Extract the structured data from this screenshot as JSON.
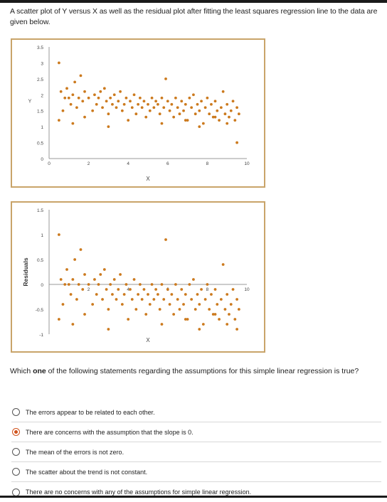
{
  "intro_text": "A scatter plot of Y versus X as well as the residual plot after fitting the least squares regression line to the data are given below.",
  "accent_color": "#c9a46a",
  "point_color": "#cc7a1e",
  "question": {
    "prefix": "Which ",
    "emphasis": "one",
    "suffix": " of the following statements regarding the assumptions for this simple linear regression is true?"
  },
  "options": [
    {
      "label": "The errors appear to be related to each other.",
      "selected": false
    },
    {
      "label": "There are concerns with the assumption that the slope is 0.",
      "selected": true
    },
    {
      "label": "The mean of the errors is not zero.",
      "selected": false
    },
    {
      "label": "The scatter about the trend is not constant.",
      "selected": false
    },
    {
      "label": "There are no concerns with any of the assumptions for simple linear regression.",
      "selected": false
    }
  ],
  "chart_data": [
    {
      "type": "scatter",
      "title": "",
      "xlabel": "X",
      "ylabel": "Y",
      "xlim": [
        0,
        10
      ],
      "ylim": [
        0,
        3.5
      ],
      "xticks": [
        "0",
        "2",
        "4",
        "6",
        "8",
        "10"
      ],
      "yticks": [
        "0",
        "0.5",
        "1",
        "1.5",
        "2",
        "2.5",
        "3",
        "3.5"
      ],
      "x": [
        0.5,
        0.6,
        0.7,
        0.8,
        0.9,
        1.0,
        1.1,
        1.2,
        1.3,
        1.4,
        1.5,
        1.6,
        1.7,
        1.8,
        2.0,
        2.2,
        2.3,
        2.4,
        2.5,
        2.6,
        2.7,
        2.8,
        2.9,
        3.0,
        3.1,
        3.2,
        3.3,
        3.4,
        3.5,
        3.6,
        3.7,
        3.8,
        3.9,
        4.0,
        4.1,
        4.2,
        4.3,
        4.4,
        4.5,
        4.6,
        4.7,
        4.8,
        4.9,
        5.0,
        5.1,
        5.2,
        5.3,
        5.4,
        5.5,
        5.6,
        5.7,
        5.8,
        5.9,
        6.0,
        6.1,
        6.2,
        6.3,
        6.4,
        6.5,
        6.6,
        6.7,
        6.8,
        6.9,
        7.0,
        7.1,
        7.2,
        7.3,
        7.4,
        7.5,
        7.6,
        7.7,
        7.8,
        7.9,
        8.0,
        8.1,
        8.2,
        8.3,
        8.4,
        8.5,
        8.6,
        8.7,
        8.8,
        8.9,
        9.0,
        9.1,
        9.2,
        9.3,
        9.4,
        9.5,
        9.6,
        0.5,
        1.2,
        1.8,
        3.0,
        5.7,
        6.9,
        7.6,
        8.4,
        9.0,
        9.5
      ],
      "y": [
        3.0,
        2.1,
        1.5,
        1.9,
        2.2,
        1.9,
        1.7,
        2.0,
        2.4,
        1.6,
        1.9,
        2.6,
        1.8,
        2.1,
        1.9,
        1.5,
        2.0,
        1.7,
        1.9,
        2.1,
        1.6,
        2.2,
        1.8,
        1.4,
        1.9,
        1.7,
        2.0,
        1.6,
        1.8,
        2.1,
        1.5,
        1.7,
        1.9,
        1.2,
        1.8,
        1.6,
        2.0,
        1.4,
        1.7,
        1.9,
        1.6,
        1.8,
        1.3,
        1.7,
        1.5,
        1.9,
        1.6,
        1.8,
        1.7,
        1.4,
        1.9,
        1.6,
        2.5,
        1.8,
        1.5,
        1.7,
        1.3,
        1.9,
        1.6,
        1.4,
        1.8,
        1.5,
        1.7,
        1.2,
        1.9,
        1.6,
        2.0,
        1.4,
        1.7,
        1.5,
        1.8,
        1.1,
        1.6,
        1.9,
        1.4,
        1.7,
        1.3,
        1.8,
        1.5,
        1.2,
        1.6,
        2.1,
        1.4,
        1.7,
        1.3,
        1.5,
        1.8,
        1.2,
        1.6,
        1.4,
        1.2,
        1.1,
        1.3,
        1.0,
        1.1,
        1.2,
        1.0,
        1.3,
        1.1,
        0.5
      ]
    },
    {
      "type": "scatter",
      "title": "",
      "xlabel": "X",
      "ylabel": "Residuals",
      "xlim": [
        0,
        10
      ],
      "ylim": [
        -1,
        1.5
      ],
      "xticks": [
        "2",
        "4",
        "6",
        "8",
        "10"
      ],
      "yticks": [
        "-1",
        "-0.5",
        "0",
        "0.5",
        "1",
        "1.5"
      ],
      "x": [
        0.5,
        0.6,
        0.7,
        0.8,
        0.9,
        1.0,
        1.1,
        1.2,
        1.3,
        1.4,
        1.5,
        1.6,
        1.7,
        1.8,
        2.0,
        2.2,
        2.3,
        2.4,
        2.5,
        2.6,
        2.7,
        2.8,
        2.9,
        3.0,
        3.1,
        3.2,
        3.3,
        3.4,
        3.5,
        3.6,
        3.7,
        3.8,
        3.9,
        4.0,
        4.1,
        4.2,
        4.3,
        4.4,
        4.5,
        4.6,
        4.7,
        4.8,
        4.9,
        5.0,
        5.1,
        5.2,
        5.3,
        5.4,
        5.5,
        5.6,
        5.7,
        5.8,
        5.9,
        6.0,
        6.1,
        6.2,
        6.3,
        6.4,
        6.5,
        6.6,
        6.7,
        6.8,
        6.9,
        7.0,
        7.1,
        7.2,
        7.3,
        7.4,
        7.5,
        7.6,
        7.7,
        7.8,
        7.9,
        8.0,
        8.1,
        8.2,
        8.3,
        8.4,
        8.5,
        8.6,
        8.7,
        8.8,
        8.9,
        9.0,
        9.1,
        9.2,
        9.3,
        9.4,
        9.5,
        9.6,
        0.5,
        1.2,
        1.8,
        3.0,
        5.7,
        6.9,
        7.6,
        8.4,
        9.0,
        9.5
      ],
      "y": [
        1.0,
        0.1,
        -0.4,
        0.0,
        0.3,
        0.0,
        -0.2,
        0.1,
        0.5,
        -0.3,
        0.0,
        0.7,
        -0.1,
        0.2,
        0.0,
        -0.4,
        0.1,
        -0.2,
        0.0,
        0.2,
        -0.3,
        0.3,
        -0.1,
        -0.5,
        0.0,
        -0.2,
        0.1,
        -0.3,
        -0.1,
        0.2,
        -0.4,
        -0.2,
        0.0,
        -0.7,
        -0.1,
        -0.3,
        0.1,
        -0.5,
        -0.2,
        0.0,
        -0.3,
        -0.1,
        -0.6,
        -0.2,
        -0.4,
        0.0,
        -0.3,
        -0.1,
        -0.2,
        -0.5,
        0.0,
        -0.3,
        0.9,
        -0.1,
        -0.4,
        -0.2,
        -0.6,
        0.0,
        -0.3,
        -0.5,
        -0.1,
        -0.4,
        -0.2,
        -0.7,
        0.0,
        -0.3,
        0.1,
        -0.5,
        -0.2,
        -0.4,
        -0.1,
        -0.8,
        -0.3,
        0.0,
        -0.5,
        -0.2,
        -0.6,
        -0.1,
        -0.4,
        -0.7,
        -0.3,
        0.4,
        -0.5,
        -0.2,
        -0.6,
        -0.4,
        -0.1,
        -0.7,
        -0.3,
        -0.5,
        -0.7,
        -0.8,
        -0.6,
        -0.9,
        -0.8,
        -0.7,
        -0.9,
        -0.6,
        -0.8,
        -0.9
      ]
    }
  ]
}
